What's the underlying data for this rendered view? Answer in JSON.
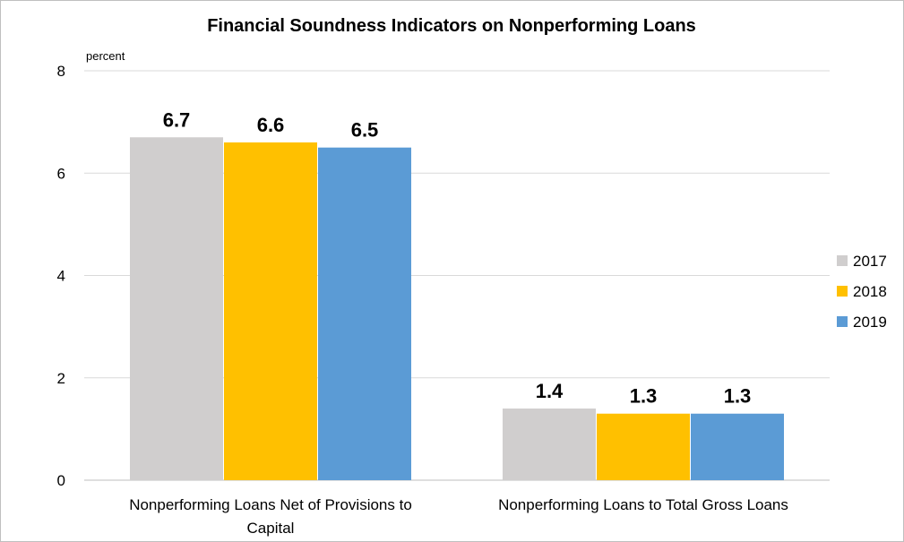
{
  "chart_data": {
    "type": "bar",
    "title": "Financial Soundness Indicators on Nonperforming Loans",
    "ylabel": "percent",
    "xlabel": "",
    "ylim": [
      0,
      8
    ],
    "yticks": [
      0,
      2,
      4,
      6,
      8
    ],
    "grid": true,
    "legend_position": "right",
    "categories": [
      [
        "Nonperforming Loans Net of Provisions to",
        "Capital"
      ],
      [
        "Nonperforming Loans to Total Gross Loans"
      ]
    ],
    "series": [
      {
        "name": "2017",
        "color": "#d0cece",
        "values": [
          6.7,
          1.4
        ],
        "labels": [
          "6.7",
          "1.4"
        ]
      },
      {
        "name": "2018",
        "color": "#ffc000",
        "values": [
          6.6,
          1.3
        ],
        "labels": [
          "6.6",
          "1.3"
        ]
      },
      {
        "name": "2019",
        "color": "#5b9bd5",
        "values": [
          6.5,
          1.3
        ],
        "labels": [
          "6.5",
          "1.3"
        ]
      }
    ]
  }
}
